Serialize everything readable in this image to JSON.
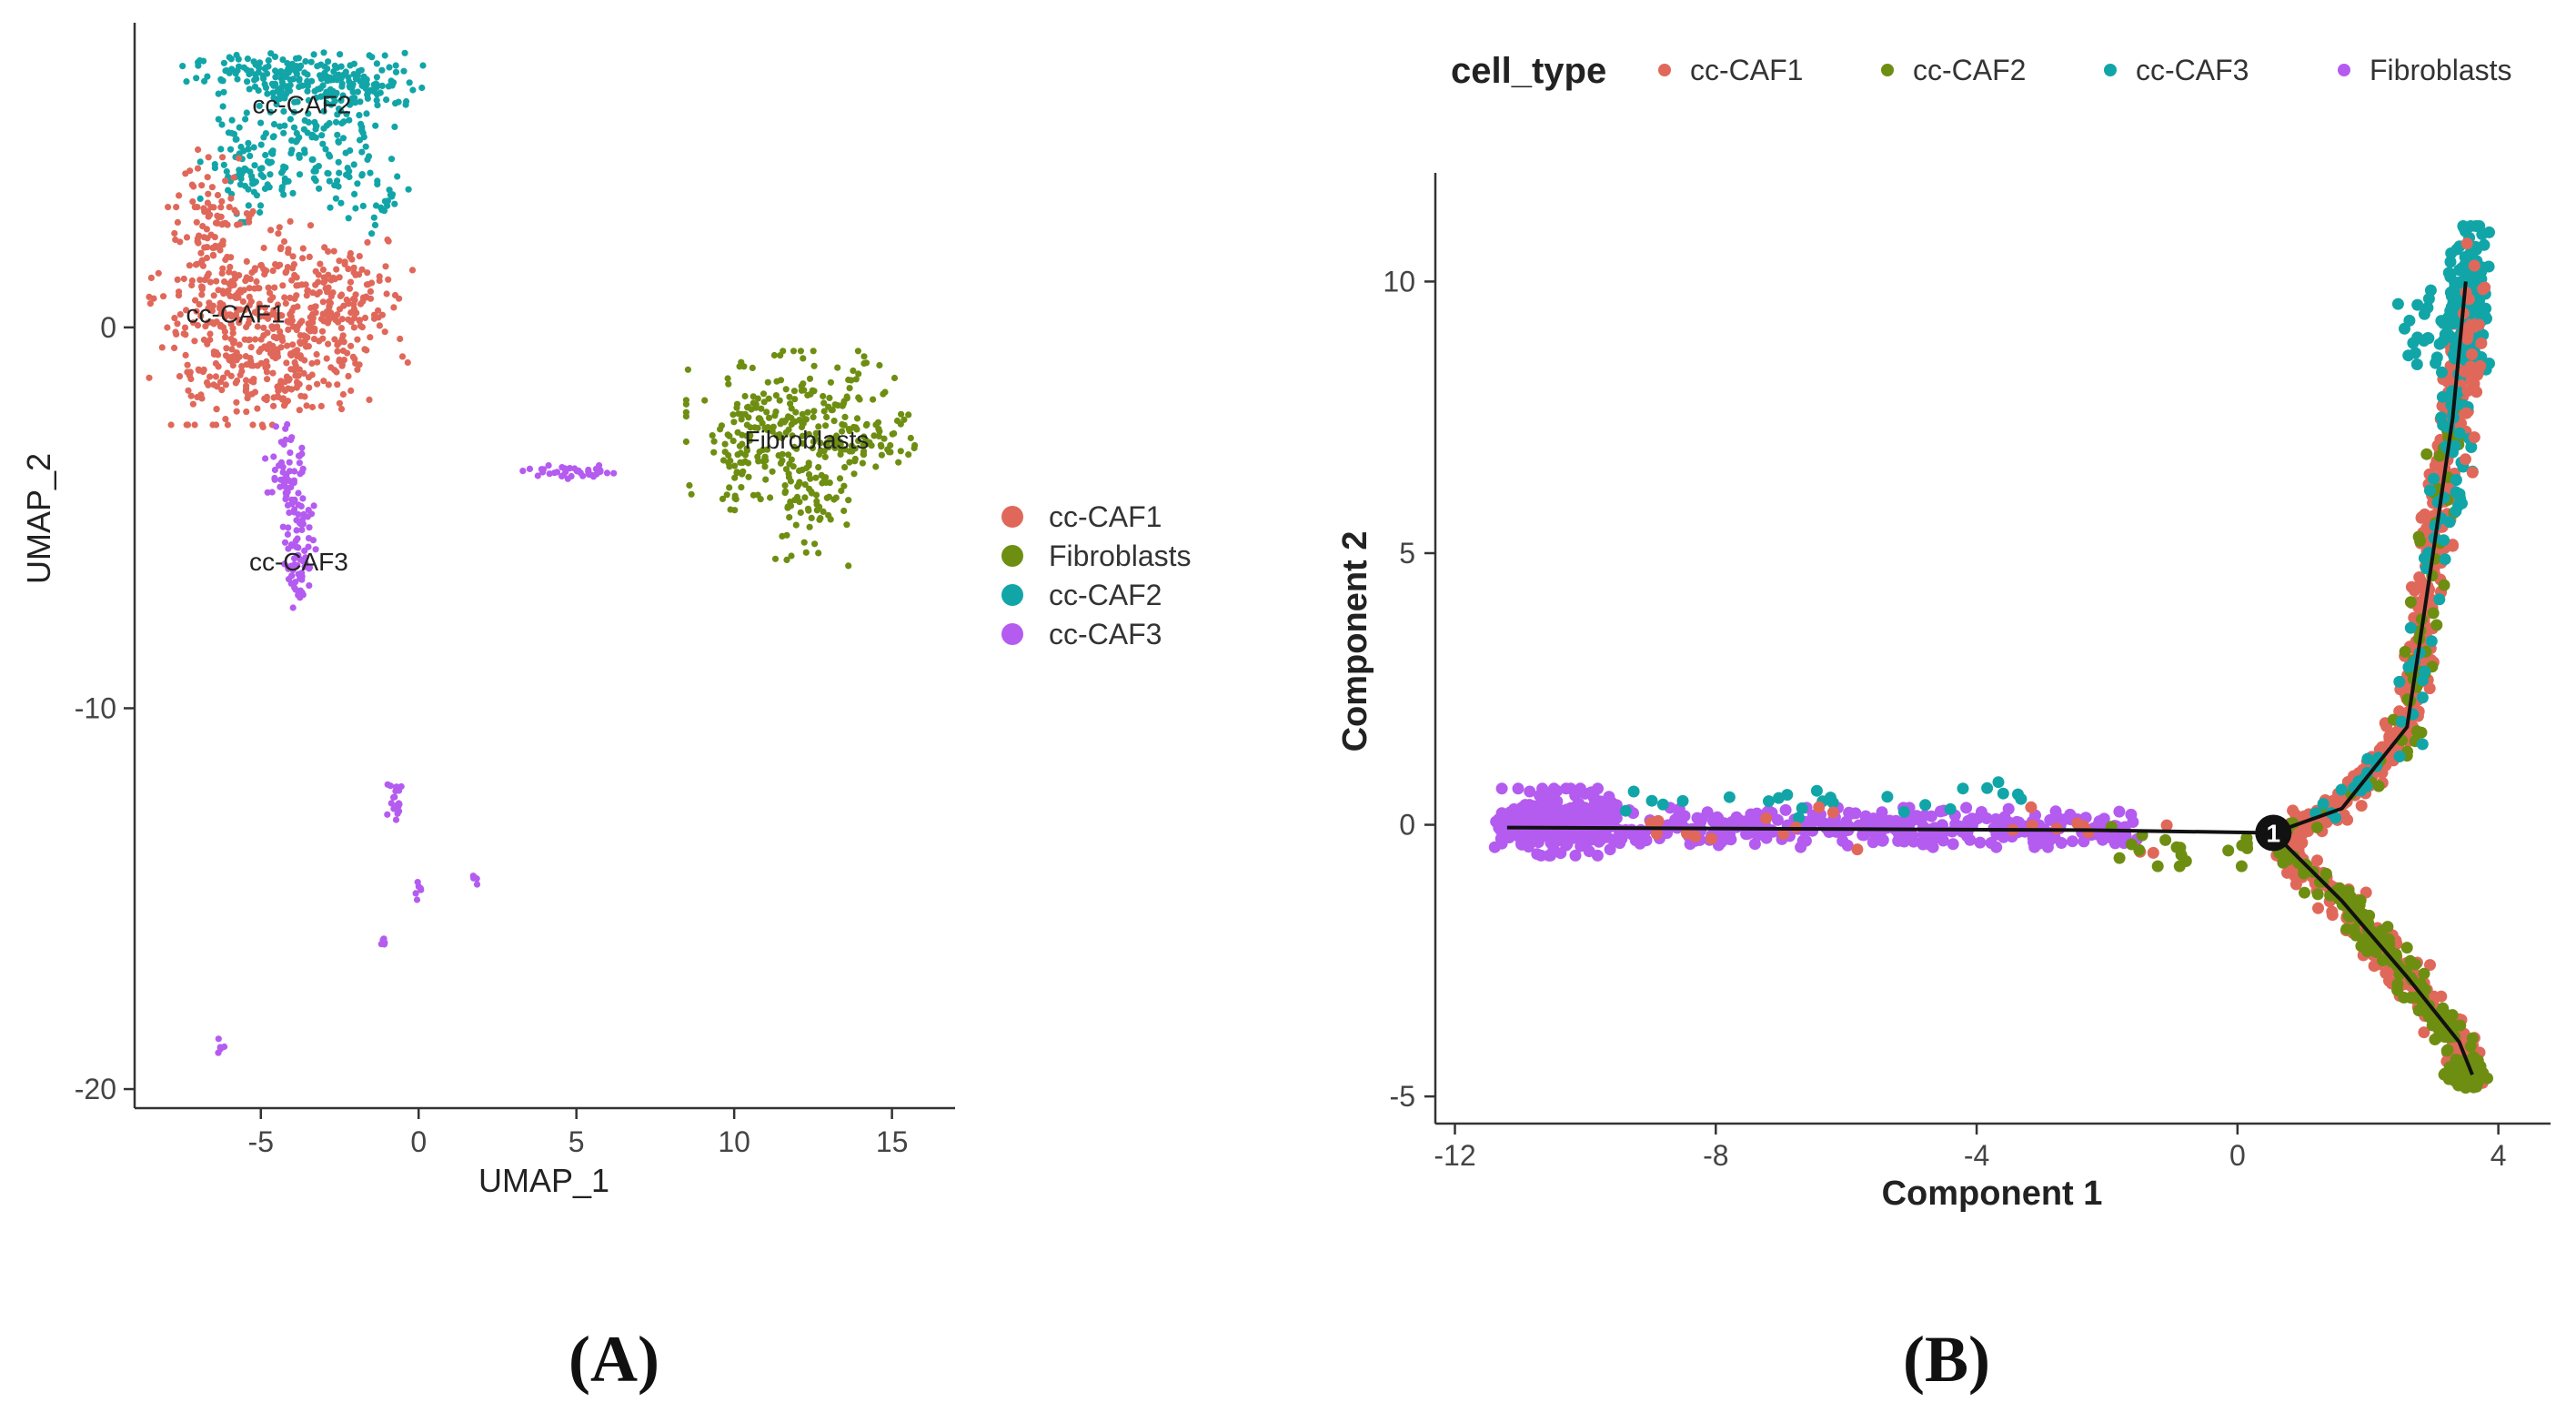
{
  "chart_data": [
    {
      "panel": "A",
      "type": "scatter",
      "title": "",
      "xlabel": "UMAP_1",
      "ylabel": "UMAP_2",
      "xlim": [
        -9,
        17
      ],
      "ylim": [
        -20.5,
        8
      ],
      "xticks": [
        -5,
        0,
        5,
        10,
        15
      ],
      "xtick_labels": [
        "-5",
        "0",
        "5",
        "10",
        "15"
      ],
      "yticks": [
        0,
        -10,
        -20
      ],
      "ytick_labels": [
        "0",
        "-10",
        "-20"
      ],
      "grid": false,
      "legend_position": "right",
      "legend": [
        {
          "label": "cc-CAF1",
          "color": "#E0685A"
        },
        {
          "label": "Fibroblasts",
          "color": "#6E8E12"
        },
        {
          "label": "cc-CAF2",
          "color": "#12A5A8"
        },
        {
          "label": "cc-CAF3",
          "color": "#B45BF0"
        }
      ],
      "cluster_labels": [
        {
          "text": "cc-CAF2",
          "x": -3.7,
          "y": 5.8
        },
        {
          "text": "cc-CAF1",
          "x": -5.8,
          "y": 0.3
        },
        {
          "text": "Fibroblasts",
          "x": 12.3,
          "y": -3.0
        },
        {
          "text": "cc-CAF3",
          "x": -3.8,
          "y": -6.2
        }
      ],
      "clusters": [
        {
          "name": "cc-CAF2",
          "color": "#12A5A8",
          "regions": [
            {
              "cx": -4.4,
              "cy": 6.6,
              "sx": 1.4,
              "sy": 0.28,
              "n": 130
            },
            {
              "cx": -1.7,
              "cy": 6.4,
              "sx": 0.9,
              "sy": 0.4,
              "n": 90
            },
            {
              "cx": -4.0,
              "cy": 5.0,
              "sx": 1.0,
              "sy": 0.9,
              "n": 130
            },
            {
              "cx": -5.6,
              "cy": 4.3,
              "sx": 0.6,
              "sy": 0.7,
              "n": 60
            },
            {
              "cx": -2.3,
              "cy": 4.3,
              "sx": 0.7,
              "sy": 1.0,
              "n": 40
            },
            {
              "cx": -1.2,
              "cy": 3.4,
              "sx": 0.4,
              "sy": 0.7,
              "n": 20
            }
          ]
        },
        {
          "name": "cc-CAF1",
          "color": "#E0685A",
          "regions": [
            {
              "cx": -5.9,
              "cy": 0.3,
              "sx": 1.2,
              "sy": 1.3,
              "n": 280
            },
            {
              "cx": -6.5,
              "cy": 2.7,
              "sx": 0.5,
              "sy": 1.0,
              "n": 70
            },
            {
              "cx": -2.3,
              "cy": 0.7,
              "sx": 1.0,
              "sy": 0.9,
              "n": 140
            },
            {
              "cx": -4.4,
              "cy": -1.3,
              "sx": 1.3,
              "sy": 0.6,
              "n": 120
            },
            {
              "cx": -3.6,
              "cy": 0.1,
              "sx": 0.8,
              "sy": 0.8,
              "n": 90
            }
          ]
        },
        {
          "name": "Fibroblasts",
          "color": "#6E8E12",
          "regions": [
            {
              "cx": 12.0,
              "cy": -2.6,
              "sx": 1.6,
              "sy": 0.9,
              "n": 230
            },
            {
              "cx": 12.3,
              "cy": -4.6,
              "sx": 0.6,
              "sy": 0.8,
              "n": 70
            },
            {
              "cx": 10.2,
              "cy": -3.6,
              "sx": 0.5,
              "sy": 0.6,
              "n": 40
            },
            {
              "cx": 14.4,
              "cy": -3.0,
              "sx": 0.6,
              "sy": 0.3,
              "n": 40
            }
          ]
        },
        {
          "name": "cc-CAF3",
          "color": "#B45BF0",
          "regions": [
            {
              "cx": -4.2,
              "cy": -3.6,
              "sx": 0.3,
              "sy": 0.6,
              "n": 40
            },
            {
              "cx": -3.8,
              "cy": -5.3,
              "sx": 0.25,
              "sy": 0.9,
              "n": 70
            },
            {
              "cx": -3.8,
              "cy": -6.7,
              "sx": 0.15,
              "sy": 0.3,
              "n": 20
            },
            {
              "cx": 5.0,
              "cy": -3.8,
              "sx": 0.8,
              "sy": 0.08,
              "n": 40
            },
            {
              "cx": -0.7,
              "cy": -12.5,
              "sx": 0.15,
              "sy": 0.3,
              "n": 20
            },
            {
              "cx": 0.0,
              "cy": -14.7,
              "sx": 0.06,
              "sy": 0.15,
              "n": 6
            },
            {
              "cx": 1.8,
              "cy": -14.5,
              "sx": 0.08,
              "sy": 0.1,
              "n": 5
            },
            {
              "cx": -1.1,
              "cy": -16.2,
              "sx": 0.06,
              "sy": 0.1,
              "n": 5
            },
            {
              "cx": -6.3,
              "cy": -18.9,
              "sx": 0.08,
              "sy": 0.1,
              "n": 5
            }
          ]
        }
      ]
    },
    {
      "panel": "B",
      "type": "scatter",
      "title": "",
      "xlabel": "Component 1",
      "ylabel": "Component 2",
      "xlim": [
        -12.3,
        4.8
      ],
      "ylim": [
        -5.5,
        12
      ],
      "xticks": [
        -12,
        -8,
        -4,
        0,
        4
      ],
      "xtick_labels": [
        "-12",
        "-8",
        "-4",
        "0",
        "4"
      ],
      "yticks": [
        -5,
        0,
        5,
        10
      ],
      "ytick_labels": [
        "-5",
        "0",
        "5",
        "10"
      ],
      "grid": false,
      "legend_title": "cell_type",
      "legend_position": "top",
      "legend": [
        {
          "label": "cc-CAF1",
          "color": "#E0685A"
        },
        {
          "label": "cc-CAF2",
          "color": "#6E8E12"
        },
        {
          "label": "cc-CAF3",
          "color": "#12A5A8"
        },
        {
          "label": "Fibroblasts",
          "color": "#B45BF0"
        }
      ],
      "branch_node": {
        "label": "1",
        "x": 0.55,
        "y": -0.15
      },
      "trajectory": [
        [
          [
            -11.2,
            -0.05
          ],
          [
            -2.2,
            -0.1
          ],
          [
            0.55,
            -0.15
          ]
        ],
        [
          [
            0.55,
            -0.15
          ],
          [
            1.6,
            0.3
          ],
          [
            2.6,
            1.8
          ],
          [
            3.0,
            5.0
          ],
          [
            3.3,
            7.5
          ],
          [
            3.5,
            10.0
          ]
        ],
        [
          [
            0.55,
            -0.15
          ],
          [
            1.6,
            -1.4
          ],
          [
            2.6,
            -2.8
          ],
          [
            3.4,
            -4.0
          ],
          [
            3.6,
            -4.6
          ]
        ]
      ],
      "point_groups": [
        {
          "name": "Fibroblasts",
          "color": "#B45BF0",
          "shape": "band",
          "x_from": -11.4,
          "x_to": -1.5,
          "y_center": -0.05,
          "y_spread": 0.3,
          "n": 420
        },
        {
          "name": "Fibroblasts",
          "color": "#B45BF0",
          "shape": "blob",
          "cx": -10.4,
          "cy": 0.05,
          "sx": 0.4,
          "sy": 0.28,
          "n": 260
        },
        {
          "name": "cc-CAF3",
          "color": "#12A5A8",
          "shape": "band",
          "x_from": -9.5,
          "x_to": -2.5,
          "y_center": 0.45,
          "y_spread": 0.35,
          "n": 25
        },
        {
          "name": "cc-CAF1",
          "color": "#E0685A",
          "shape": "band",
          "x_from": -9.0,
          "x_to": -1.0,
          "y_center": -0.1,
          "y_spread": 0.35,
          "n": 22
        },
        {
          "name": "cc-CAF2",
          "color": "#6E8E12",
          "shape": "band",
          "x_from": -2.0,
          "x_to": 0.3,
          "y_center": -0.4,
          "y_spread": 0.3,
          "n": 18
        },
        {
          "name": "cc-CAF1",
          "color": "#E0685A",
          "shape": "branch",
          "branch": 1,
          "t_from": 0.02,
          "t_to": 0.95,
          "spread": 0.12,
          "n": 380
        },
        {
          "name": "cc-CAF2",
          "color": "#6E8E12",
          "shape": "branch",
          "branch": 1,
          "t_from": 0.02,
          "t_to": 0.8,
          "spread": 0.14,
          "n": 60
        },
        {
          "name": "cc-CAF3",
          "color": "#12A5A8",
          "shape": "branch",
          "branch": 1,
          "t_from": 0.05,
          "t_to": 0.85,
          "spread": 0.14,
          "n": 50
        },
        {
          "name": "cc-CAF3",
          "color": "#12A5A8",
          "shape": "blob",
          "cx": 3.55,
          "cy": 9.7,
          "sx": 0.14,
          "sy": 0.6,
          "n": 140
        },
        {
          "name": "cc-CAF3",
          "color": "#12A5A8",
          "shape": "blob",
          "cx": 3.1,
          "cy": 9.1,
          "sx": 0.3,
          "sy": 0.35,
          "n": 35
        },
        {
          "name": "cc-CAF3",
          "color": "#12A5A8",
          "shape": "blob",
          "cx": 3.4,
          "cy": 7.2,
          "sx": 0.1,
          "sy": 0.8,
          "n": 30
        },
        {
          "name": "cc-CAF1",
          "color": "#E0685A",
          "shape": "blob",
          "cx": 3.6,
          "cy": 8.5,
          "sx": 0.1,
          "sy": 1.0,
          "n": 30
        },
        {
          "name": "cc-CAF1",
          "color": "#E0685A",
          "shape": "branch",
          "branch": 2,
          "t_from": 0.05,
          "t_to": 1.0,
          "spread": 0.14,
          "n": 240
        },
        {
          "name": "cc-CAF2",
          "color": "#6E8E12",
          "shape": "branch",
          "branch": 2,
          "t_from": 0.05,
          "t_to": 1.0,
          "spread": 0.14,
          "n": 140
        },
        {
          "name": "cc-CAF2",
          "color": "#6E8E12",
          "shape": "blob",
          "cx": 3.5,
          "cy": -4.6,
          "sx": 0.15,
          "sy": 0.15,
          "n": 60
        }
      ]
    }
  ],
  "panel_labels": {
    "a": "(A)",
    "b": "(B)"
  }
}
